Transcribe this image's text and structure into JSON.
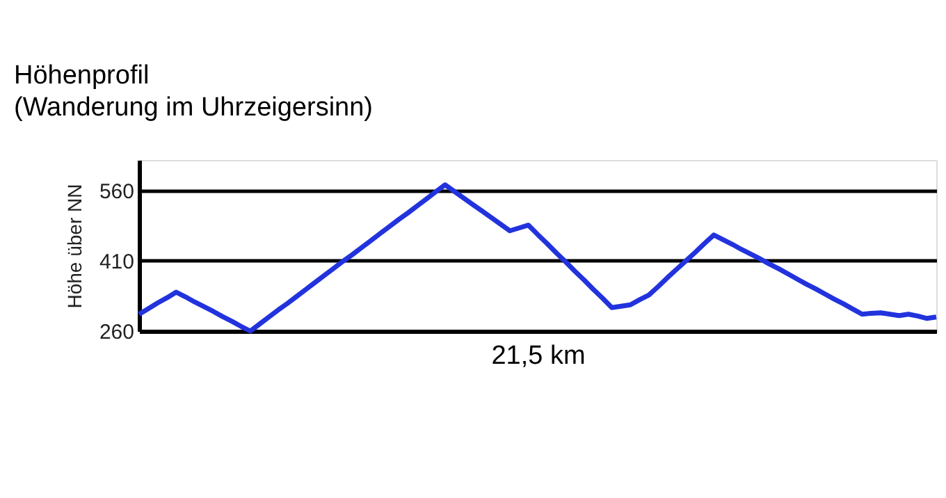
{
  "chart_data": {
    "type": "line",
    "title": "Höhenprofil",
    "subtitle": "(Wanderung im Uhrzeigersinn)",
    "xlabel": "21,5 km",
    "ylabel": "Höhe über NN",
    "categories": [
      null,
      null,
      null,
      null,
      null,
      null,
      null,
      null,
      null,
      null,
      null,
      null,
      null,
      null,
      null,
      null,
      null,
      null,
      null,
      null,
      null,
      null,
      null,
      null,
      null,
      null,
      null,
      null,
      null,
      null,
      null,
      null,
      null,
      null,
      null,
      null,
      null,
      null,
      null,
      null,
      null,
      null,
      null,
      null,
      null,
      null,
      null,
      null,
      null,
      null,
      null,
      null,
      null,
      null,
      null,
      null,
      null,
      null,
      null,
      null,
      null,
      null,
      null,
      null,
      null,
      null,
      null,
      null,
      null,
      null,
      null,
      null,
      null,
      null,
      null,
      null,
      null,
      null,
      null,
      null,
      null,
      null,
      null,
      null,
      null,
      null,
      null
    ],
    "series": [
      {
        "color": "#2233dd",
        "values": [
          296,
          308,
          320,
          331,
          343,
          333,
          322,
          312,
          302,
          291,
          281,
          270,
          260,
          275,
          290,
          305,
          319,
          334,
          349,
          364,
          379,
          394,
          409,
          423,
          438,
          453,
          468,
          483,
          498,
          512,
          527,
          542,
          557,
          572,
          558,
          544,
          530,
          516,
          502,
          488,
          474,
          480,
          486,
          466,
          447,
          427,
          408,
          388,
          369,
          349,
          330,
          310,
          313,
          316,
          327,
          337,
          355,
          374,
          392,
          410,
          428,
          447,
          465,
          455,
          445,
          434,
          424,
          414,
          403,
          393,
          382,
          371,
          360,
          350,
          339,
          328,
          318,
          307,
          296,
          298,
          299,
          296,
          293,
          296,
          292,
          287,
          290
        ]
      }
    ],
    "ylim": [
      260,
      625
    ],
    "yticks": [
      260,
      410,
      560
    ],
    "grid": "y",
    "tick_labels": "y",
    "marker": "none",
    "line_style": "solid",
    "legend": false
  }
}
